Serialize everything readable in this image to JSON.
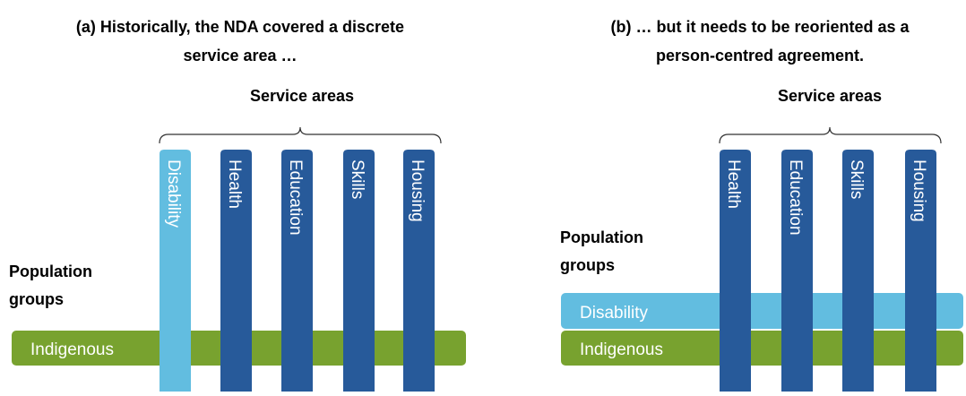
{
  "panels": [
    {
      "title": [
        "(a) Historically, the NDA covered a discrete",
        "service area …"
      ],
      "service_areas_label": "Service areas",
      "population_groups_label": [
        "Population",
        "groups"
      ],
      "columns": [
        "Disability",
        "Health",
        "Education",
        "Skills",
        "Housing"
      ],
      "rows": [
        "Indigenous"
      ]
    },
    {
      "title": [
        "(b) … but it needs to be reoriented as a",
        "person-centred agreement."
      ],
      "service_areas_label": "Service areas",
      "population_groups_label": [
        "Population",
        "groups"
      ],
      "columns": [
        "Health",
        "Education",
        "Skills",
        "Housing"
      ],
      "rows": [
        "Disability",
        "Indigenous"
      ]
    }
  ]
}
